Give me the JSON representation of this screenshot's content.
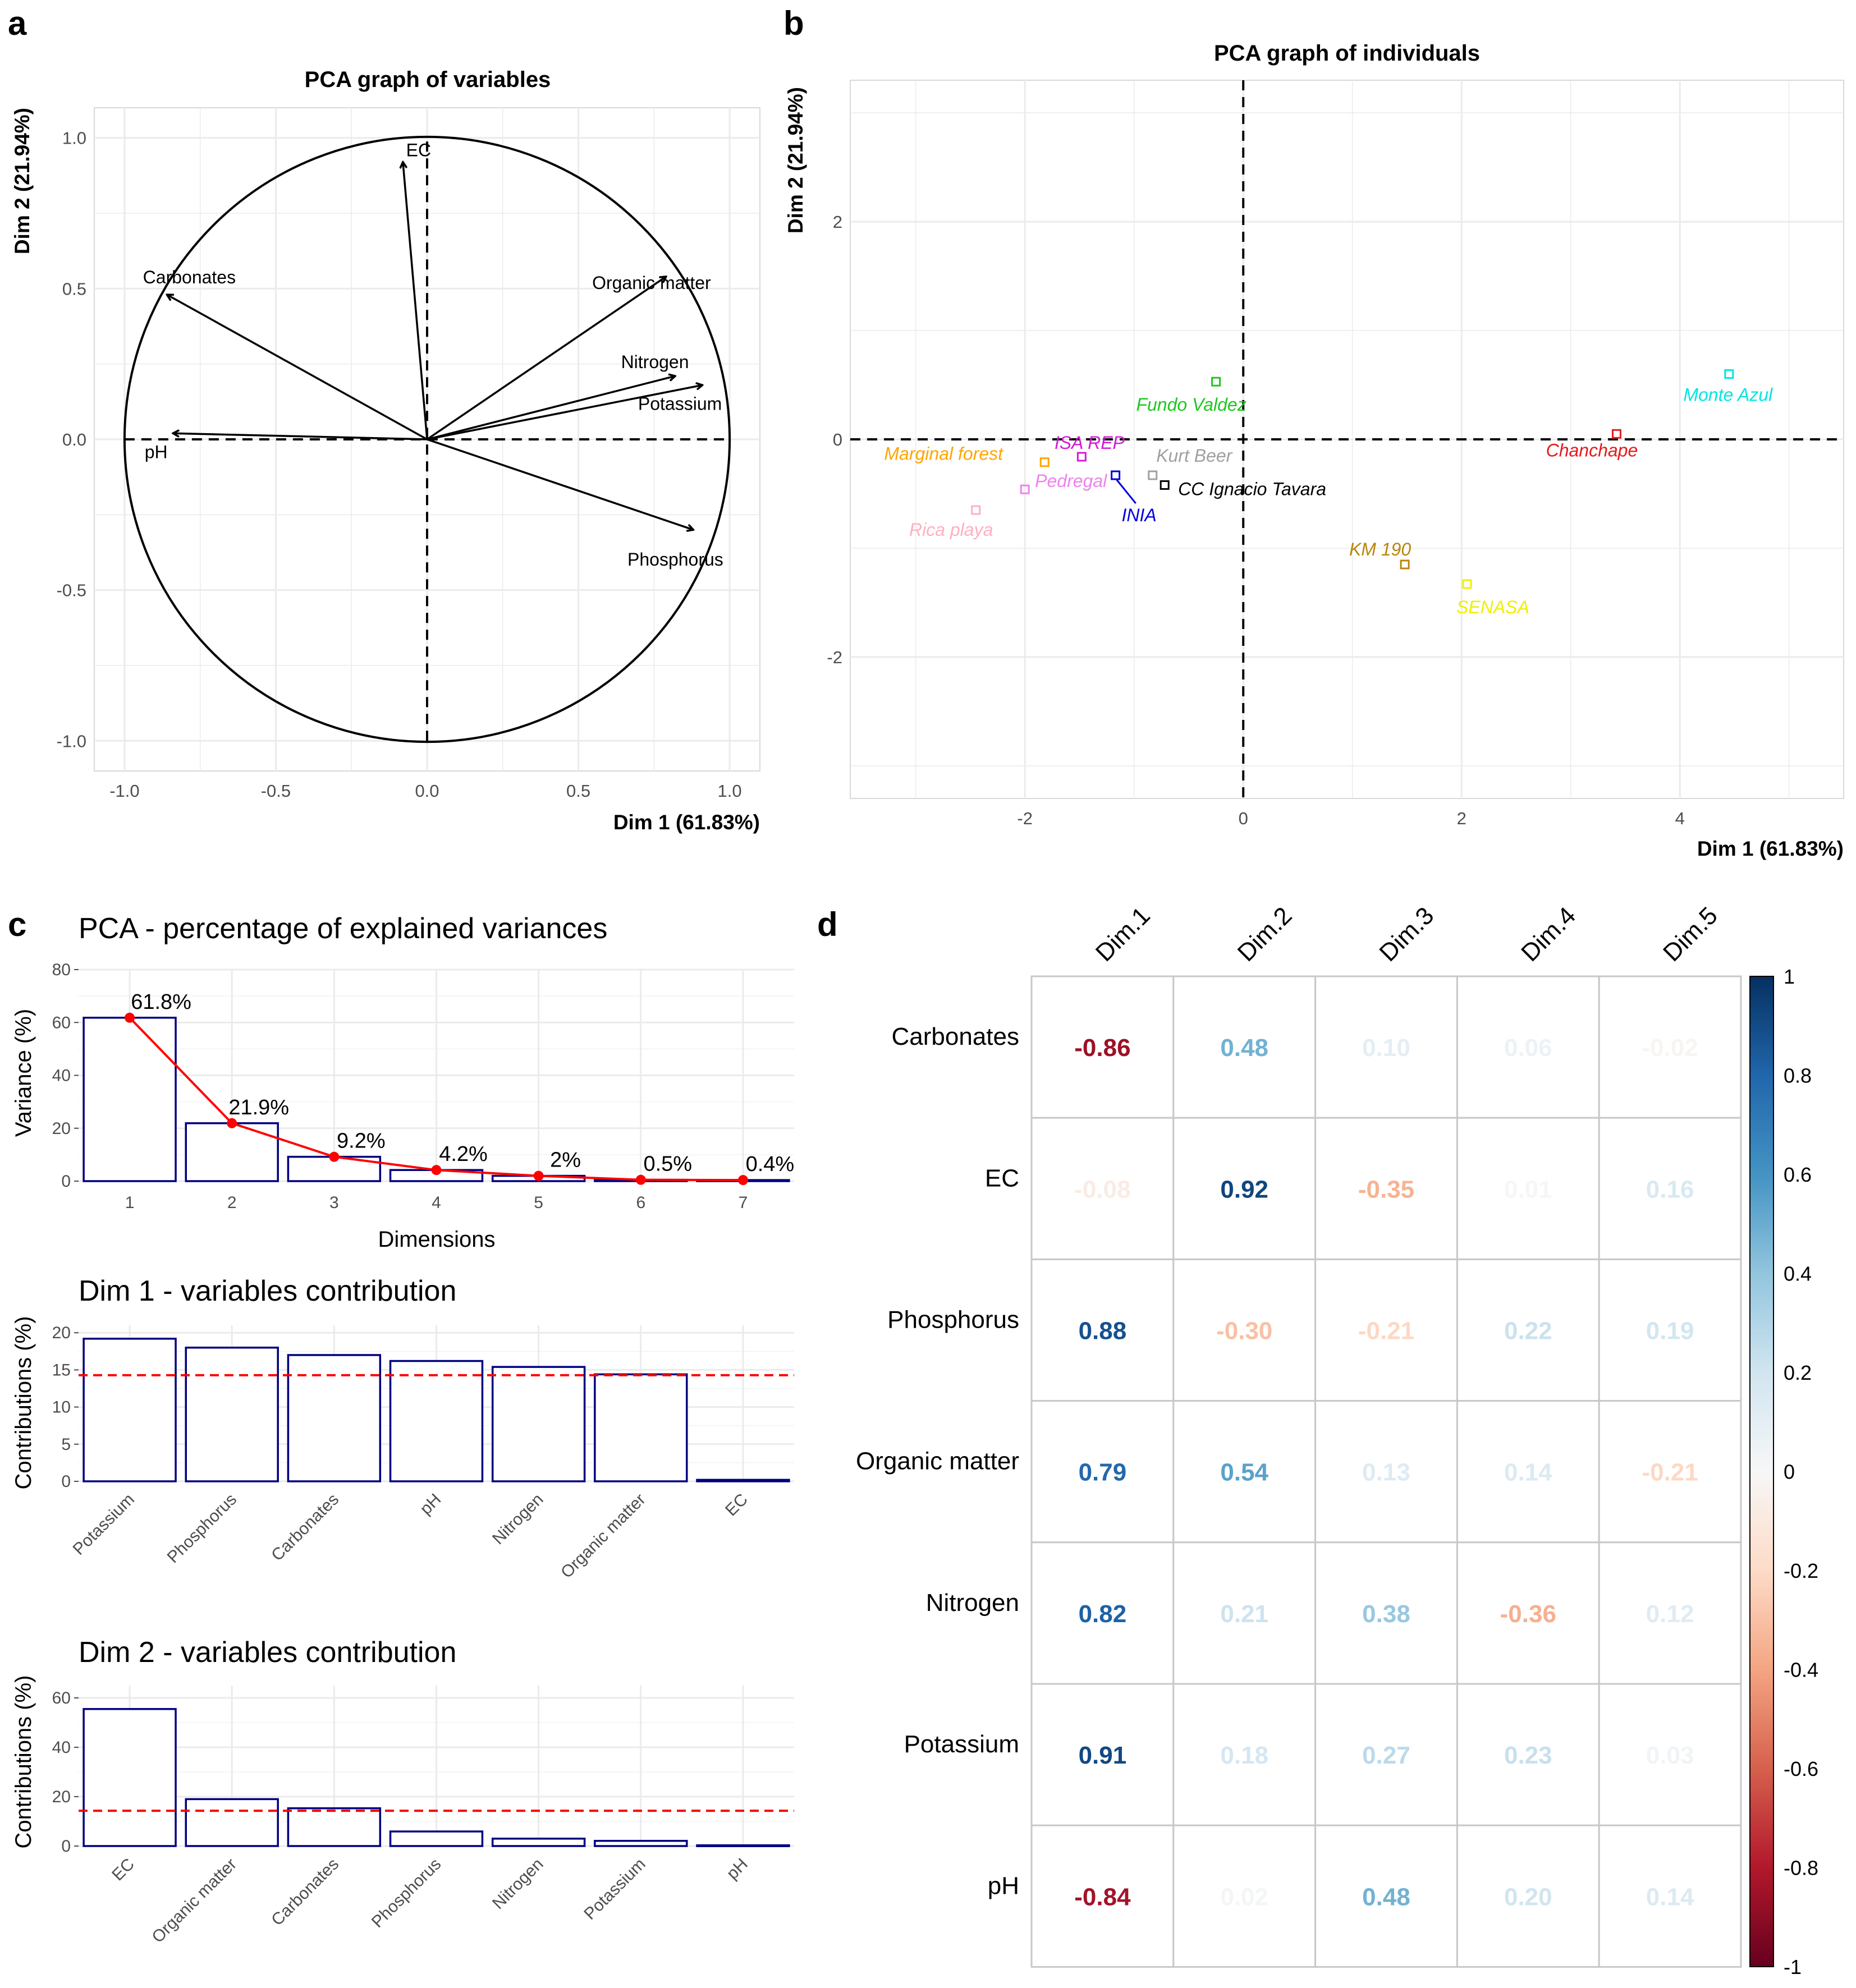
{
  "panels": {
    "a": "a",
    "b": "b",
    "c": "c",
    "d": "d"
  },
  "chart_data": [
    {
      "type": "scatter",
      "panel": "a",
      "title": "PCA graph of variables",
      "xlabel": "Dim 1 (61.83%)",
      "ylabel": "Dim 2 (21.94%)",
      "xlim": [
        -1.1,
        1.1
      ],
      "ylim": [
        -1.1,
        1.1
      ],
      "xticks": [
        "-1.0",
        "-0.5",
        "0.0",
        "0.5",
        "1.0"
      ],
      "yticks": [
        "-1.0",
        "-0.5",
        "0.0",
        "0.5",
        "1.0"
      ],
      "grid": true,
      "unit_circle": true,
      "arrows": [
        {
          "label": "EC",
          "x": -0.08,
          "y": 0.92
        },
        {
          "label": "Carbonates",
          "x": -0.86,
          "y": 0.48
        },
        {
          "label": "Organic matter",
          "x": 0.79,
          "y": 0.54
        },
        {
          "label": "Nitrogen",
          "x": 0.82,
          "y": 0.21
        },
        {
          "label": "Potassium",
          "x": 0.91,
          "y": 0.18
        },
        {
          "label": "pH",
          "x": -0.84,
          "y": 0.02
        },
        {
          "label": "Phosphorus",
          "x": 0.88,
          "y": -0.3
        }
      ]
    },
    {
      "type": "scatter",
      "panel": "b",
      "title": "PCA graph of individuals",
      "xlabel": "Dim 1 (61.83%)",
      "ylabel": "Dim 2 (21.94%)",
      "xlim": [
        -3.6,
        5.5
      ],
      "ylim": [
        -3.3,
        3.3
      ],
      "xticks": [
        -2,
        0,
        2,
        4
      ],
      "yticks": [
        -2,
        0,
        2
      ],
      "grid": true,
      "points": [
        {
          "label": "Monte Azul",
          "x": 4.45,
          "y": 0.6,
          "color": "#00e5e5"
        },
        {
          "label": "Chanchape",
          "x": 3.42,
          "y": 0.05,
          "color": "#e41a1c"
        },
        {
          "label": "Fundo Valdez",
          "x": -0.25,
          "y": 0.53,
          "color": "#1ec81e"
        },
        {
          "label": "Kurt Beer",
          "x": -0.83,
          "y": -0.33,
          "color": "#a0a0a0"
        },
        {
          "label": "CC Ignacio Tavara",
          "x": -0.72,
          "y": -0.42,
          "color": "#000000"
        },
        {
          "label": "INIA",
          "x": -1.17,
          "y": -0.33,
          "color": "#0000dd"
        },
        {
          "label": "ISA REP",
          "x": -1.48,
          "y": -0.16,
          "color": "#d61ad6"
        },
        {
          "label": "Marginal forest",
          "x": -1.82,
          "y": -0.21,
          "color": "#ffa500"
        },
        {
          "label": "Pedregal",
          "x": -2.0,
          "y": -0.46,
          "color": "#ee82ee"
        },
        {
          "label": "Rica playa",
          "x": -2.45,
          "y": -0.65,
          "color": "#ffb0c0"
        },
        {
          "label": "KM 190",
          "x": 1.48,
          "y": -1.15,
          "color": "#b8860b"
        },
        {
          "label": "SENASA",
          "x": 2.05,
          "y": -1.33,
          "color": "#f0f000"
        }
      ]
    },
    {
      "type": "bar",
      "panel": "c",
      "title": "PCA - percentage of explained variances",
      "xlabel": "Dimensions",
      "ylabel": "Variance (%)",
      "ylim": [
        0,
        80
      ],
      "yticks": [
        0,
        20,
        40,
        60,
        80
      ],
      "categories": [
        "1",
        "2",
        "3",
        "4",
        "5",
        "6",
        "7"
      ],
      "values": [
        61.8,
        21.9,
        9.2,
        4.2,
        2.0,
        0.5,
        0.4
      ],
      "data_labels": [
        "61.8%",
        "21.9%",
        "9.2%",
        "4.2%",
        "2%",
        "0.5%",
        "0.4%"
      ],
      "line_color": "#ff0000",
      "bar_outline": "#000080"
    },
    {
      "type": "bar",
      "panel": "c",
      "title": "Dim 1 - variables contribution",
      "ylabel": "Contributions (%)",
      "ylim": [
        0,
        21
      ],
      "yticks": [
        0,
        5,
        10,
        15,
        20
      ],
      "categories": [
        "Potassium",
        "Phosphorus",
        "Carbonates",
        "pH",
        "Nitrogen",
        "Organic matter",
        "EC"
      ],
      "values": [
        19.2,
        18.0,
        17.0,
        16.2,
        15.4,
        14.4,
        0.2
      ],
      "reference_line": 14.29,
      "reference_color": "#ff0000"
    },
    {
      "type": "bar",
      "panel": "c",
      "title": "Dim 2 - variables contribution",
      "ylabel": "Contributions (%)",
      "ylim": [
        0,
        65
      ],
      "yticks": [
        0,
        20,
        40,
        60
      ],
      "categories": [
        "EC",
        "Organic matter",
        "Carbonates",
        "Phosphorus",
        "Nitrogen",
        "Potassium",
        "pH"
      ],
      "values": [
        55.5,
        19.0,
        15.3,
        5.9,
        3.0,
        2.1,
        0.3
      ],
      "reference_line": 14.29,
      "reference_color": "#ff0000"
    },
    {
      "type": "heatmap",
      "panel": "d",
      "columns": [
        "Dim.1",
        "Dim.2",
        "Dim.3",
        "Dim.4",
        "Dim.5"
      ],
      "rows": [
        "Carbonates",
        "EC",
        "Phosphorus",
        "Organic matter",
        "Nitrogen",
        "Potassium",
        "pH"
      ],
      "values": [
        [
          -0.86,
          0.48,
          0.1,
          0.06,
          -0.02
        ],
        [
          -0.08,
          0.92,
          -0.35,
          0.01,
          0.16
        ],
        [
          0.88,
          -0.3,
          -0.21,
          0.22,
          0.19
        ],
        [
          0.79,
          0.54,
          0.13,
          0.14,
          -0.21
        ],
        [
          0.82,
          0.21,
          0.38,
          -0.36,
          0.12
        ],
        [
          0.91,
          0.18,
          0.27,
          0.23,
          0.03
        ],
        [
          -0.84,
          0.02,
          0.48,
          0.2,
          0.14
        ]
      ],
      "labels": [
        [
          "-0.86",
          "0.48",
          "0.10",
          "0.06",
          "-0.02"
        ],
        [
          "-0.08",
          "0.92",
          "-0.35",
          "0.01",
          "0.16"
        ],
        [
          "0.88",
          "-0.30",
          "-0.21",
          "0.22",
          "0.19"
        ],
        [
          "0.79",
          "0.54",
          "0.13",
          "0.14",
          "-0.21"
        ],
        [
          "0.82",
          "0.21",
          "0.38",
          "-0.36",
          "0.12"
        ],
        [
          "0.91",
          "0.18",
          "0.27",
          "0.23",
          "0.03"
        ],
        [
          "-0.84",
          "0.02",
          "0.48",
          "0.20",
          "0.14"
        ]
      ],
      "colorbar_ticks": [
        "1",
        "0.8",
        "0.6",
        "0.4",
        "0.2",
        "0",
        "-0.2",
        "-0.4",
        "-0.6",
        "-0.8",
        "-1"
      ],
      "colorbar_range": [
        -1,
        1
      ]
    }
  ]
}
